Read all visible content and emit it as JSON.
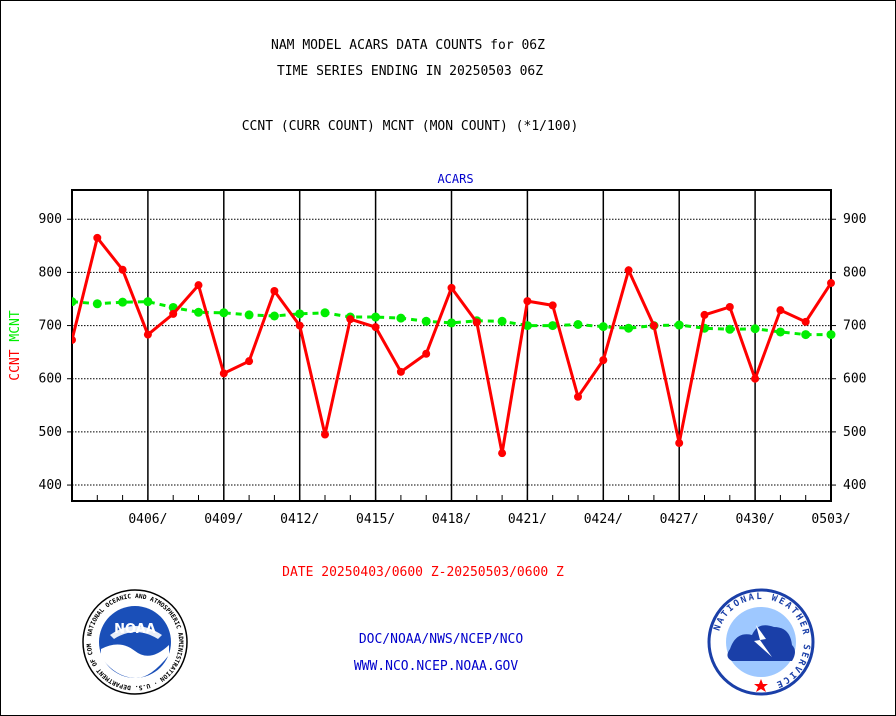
{
  "header": {
    "title_line1": "NAM MODEL ACARS DATA COUNTS for 06Z",
    "title_line2": "TIME SERIES ENDING IN 20250503 06Z",
    "subtitle": "CCNT (CURR COUNT) MCNT (MON COUNT) (*1/100)"
  },
  "footer": {
    "date_range": "DATE 20250403/0600 Z-20250503/0600 Z",
    "agency": "DOC/NOAA/NWS/NCEP/NCO",
    "website": "WWW.NCO.NCEP.NOAA.GOV"
  },
  "logos": {
    "noaa_text": "NOAA",
    "noaa_ring_text": "NATIONAL OCEANIC AND ATMOSPHERIC ADMINISTRATION · U.S. DEPARTMENT OF COMMERCE",
    "nws_ring_text": "NATIONAL WEATHER SERVICE"
  },
  "chart_data": {
    "type": "line",
    "title": "ACARS",
    "ylabel_left": [
      "CCNT",
      "MCNT"
    ],
    "ylim": [
      370,
      955
    ],
    "yticks": [
      400,
      500,
      600,
      700,
      800,
      900
    ],
    "xlim": [
      0,
      30
    ],
    "x_tick_positions": [
      3,
      6,
      9,
      12,
      15,
      18,
      21,
      24,
      27,
      30
    ],
    "x_tick_labels": [
      "0406/",
      "0409/",
      "0412/",
      "0415/",
      "0418/",
      "0421/",
      "0424/",
      "0427/",
      "0430/",
      "0503/"
    ],
    "grid": true,
    "colors": {
      "ccnt": "#ff0000",
      "mcnt": "#00ee00",
      "title": "#0000cc"
    },
    "series": [
      {
        "name": "CCNT",
        "x": [
          0,
          1,
          2,
          3,
          4,
          5,
          6,
          7,
          8,
          9,
          10,
          11,
          12,
          13,
          14,
          15,
          16,
          17,
          18,
          19,
          20,
          21,
          22,
          23,
          24,
          25,
          26,
          27,
          28,
          29,
          30
        ],
        "values": [
          673,
          865,
          805,
          683,
          722,
          776,
          610,
          633,
          765,
          700,
          495,
          712,
          697,
          613,
          647,
          771,
          706,
          460,
          746,
          738,
          566,
          635,
          804,
          700,
          479,
          720,
          735,
          600,
          729,
          707,
          780
        ]
      },
      {
        "name": "MCNT",
        "x": [
          0,
          1,
          2,
          3,
          4,
          5,
          6,
          7,
          8,
          9,
          10,
          11,
          12,
          13,
          14,
          15,
          16,
          17,
          18,
          19,
          20,
          21,
          22,
          23,
          24,
          25,
          26,
          27,
          28,
          29,
          30
        ],
        "values": [
          745,
          741,
          744,
          745,
          734,
          725,
          724,
          720,
          718,
          722,
          724,
          716,
          716,
          714,
          708,
          705,
          709,
          708,
          700,
          700,
          702,
          698,
          695,
          700,
          701,
          695,
          693,
          694,
          688,
          683,
          683
        ]
      }
    ]
  }
}
